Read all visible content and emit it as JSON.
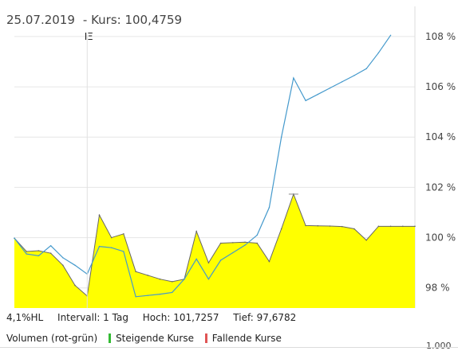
{
  "header": {
    "date": "25.07.2019",
    "kurs": "- Kurs: 100,4759"
  },
  "info": {
    "hl": "4,1%HL",
    "intervall": "Intervall: 1 Tag",
    "hoch": "Hoch: 101,7257",
    "tief": "Tief: 97,6782"
  },
  "legend": {
    "volumen": "Volumen (rot-grün)",
    "steigende": "Steigende Kurse",
    "fallende": "Fallende Kurse",
    "colors": {
      "steigende": "#33bb33",
      "fallende": "#e05555"
    }
  },
  "volume_axis": {
    "tick": "1.000"
  },
  "chart_data": {
    "type": "area",
    "y_tick_labels": [
      "98 %",
      "100 %",
      "102 %",
      "104 %",
      "106 %",
      "108 %"
    ],
    "y_ticks": [
      98,
      100,
      102,
      104,
      106,
      108
    ],
    "ylim": [
      97.2,
      109.2
    ],
    "xlim": [
      0,
      33
    ],
    "grid": true,
    "crosshair_marker": "ΙΞ",
    "crosshair_x": 6,
    "series": [
      {
        "role": "area",
        "color": "#ffff00",
        "stroke": "#666666",
        "x": [
          0,
          1,
          2,
          3,
          4,
          5,
          6,
          7,
          8,
          9,
          10,
          11,
          12,
          13,
          14,
          15,
          16,
          17,
          18,
          19,
          20,
          21,
          22,
          23,
          24,
          25,
          26,
          27,
          28,
          29,
          30,
          31,
          32,
          33
        ],
        "values": [
          99.98,
          99.45,
          99.48,
          99.38,
          98.9,
          98.1,
          97.68,
          100.9,
          100.0,
          100.15,
          98.65,
          98.5,
          98.35,
          98.25,
          98.35,
          100.25,
          99.0,
          99.78,
          99.8,
          99.82,
          99.78,
          99.05,
          100.35,
          101.73,
          100.48,
          100.47,
          100.46,
          100.44,
          100.35,
          99.9,
          100.45,
          100.45,
          100.45,
          100.45
        ]
      },
      {
        "role": "line",
        "color": "#4499cc",
        "x": [
          0,
          1,
          2,
          3,
          4,
          5,
          6,
          7,
          8,
          9,
          10,
          11,
          12,
          13,
          14,
          15,
          16,
          17,
          18,
          19,
          20,
          21,
          22,
          23,
          24,
          25,
          26,
          27,
          28,
          29,
          30,
          31,
          32,
          33
        ],
        "values": [
          99.98,
          99.35,
          99.28,
          99.68,
          99.2,
          98.9,
          98.55,
          99.65,
          99.6,
          99.45,
          97.65,
          97.7,
          97.75,
          97.82,
          98.35,
          99.15,
          98.35,
          99.1,
          99.4,
          99.7,
          100.1,
          101.2,
          104.0,
          106.35,
          105.45,
          105.7,
          105.95,
          106.2,
          106.45,
          106.72,
          107.35,
          108.05,
          108.05,
          108.05
        ]
      }
    ]
  }
}
